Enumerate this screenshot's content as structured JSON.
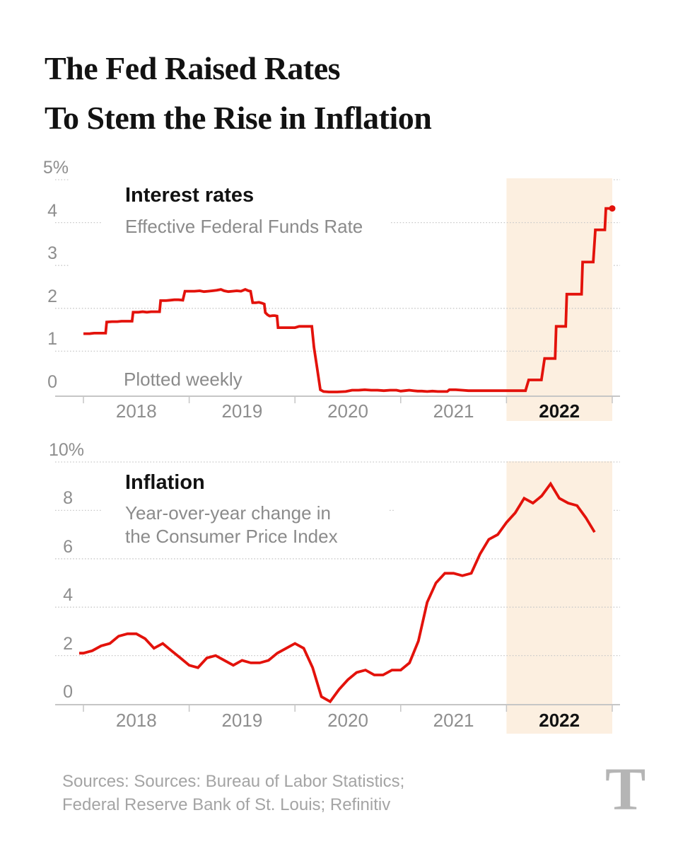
{
  "headline": {
    "line1": "The Fed Raised Rates",
    "line2": "To Stem the Rise in Inflation"
  },
  "footer": {
    "sources_line1": "Sources: Sources: Bureau of Labor Statistics;",
    "sources_line2": "Federal Reserve Bank of St. Louis; Refinitiv",
    "logo_glyph": "T"
  },
  "colors": {
    "accent_red": "#e3120b",
    "highlight_beige": "#fcefe0",
    "gridline": "#c9c9c9",
    "axis": "#c6c6c6",
    "axis_label": "#8e8e8e",
    "subtitle_gray": "#8b8b8b",
    "headline_black": "#121212",
    "sources_gray": "#a4a4a4",
    "logo_gray": "#b5b5b5"
  },
  "chart_data": [
    {
      "type": "line",
      "title": "Interest rates",
      "subtitle": "Effective Federal Funds Rate",
      "annotation": "Plotted weekly",
      "xlim": [
        2018,
        2023
      ],
      "ylim": [
        0,
        5
      ],
      "x_tick_labels": [
        "2018",
        "2019",
        "2020",
        "2021",
        "2022"
      ],
      "bold_x_tick_label": "2022",
      "highlight_region": [
        2022,
        2023
      ],
      "grid": "dotted",
      "legend": "none",
      "end_dot": true,
      "y_ticks": [
        {
          "value": 5,
          "label": "5%",
          "line": "stub"
        },
        {
          "value": 4,
          "label": "4",
          "line": "split"
        },
        {
          "value": 3,
          "label": "3",
          "line": "stub"
        },
        {
          "value": 2,
          "label": "2",
          "line": "full"
        },
        {
          "value": 1,
          "label": "1",
          "line": "full"
        },
        {
          "value": 0,
          "label": "0",
          "line": "axis"
        }
      ],
      "points": [
        [
          2018.0,
          1.41
        ],
        [
          2018.06,
          1.41
        ],
        [
          2018.1,
          1.42
        ],
        [
          2018.14,
          1.42
        ],
        [
          2018.18,
          1.42
        ],
        [
          2018.21,
          1.42
        ],
        [
          2018.22,
          1.68
        ],
        [
          2018.27,
          1.69
        ],
        [
          2018.32,
          1.69
        ],
        [
          2018.36,
          1.7
        ],
        [
          2018.4,
          1.7
        ],
        [
          2018.44,
          1.7
        ],
        [
          2018.46,
          1.7
        ],
        [
          2018.47,
          1.91
        ],
        [
          2018.52,
          1.91
        ],
        [
          2018.56,
          1.92
        ],
        [
          2018.6,
          1.91
        ],
        [
          2018.64,
          1.92
        ],
        [
          2018.68,
          1.92
        ],
        [
          2018.72,
          1.92
        ],
        [
          2018.73,
          2.18
        ],
        [
          2018.78,
          2.18
        ],
        [
          2018.82,
          2.19
        ],
        [
          2018.86,
          2.2
        ],
        [
          2018.9,
          2.2
        ],
        [
          2018.94,
          2.19
        ],
        [
          2018.96,
          2.4
        ],
        [
          2019.0,
          2.4
        ],
        [
          2019.05,
          2.4
        ],
        [
          2019.1,
          2.41
        ],
        [
          2019.14,
          2.39
        ],
        [
          2019.18,
          2.4
        ],
        [
          2019.22,
          2.41
        ],
        [
          2019.26,
          2.42
        ],
        [
          2019.3,
          2.44
        ],
        [
          2019.33,
          2.41
        ],
        [
          2019.37,
          2.39
        ],
        [
          2019.41,
          2.4
        ],
        [
          2019.45,
          2.41
        ],
        [
          2019.49,
          2.4
        ],
        [
          2019.53,
          2.44
        ],
        [
          2019.56,
          2.41
        ],
        [
          2019.58,
          2.4
        ],
        [
          2019.6,
          2.13
        ],
        [
          2019.63,
          2.13
        ],
        [
          2019.66,
          2.14
        ],
        [
          2019.69,
          2.12
        ],
        [
          2019.71,
          2.1
        ],
        [
          2019.72,
          1.9
        ],
        [
          2019.74,
          1.85
        ],
        [
          2019.76,
          1.82
        ],
        [
          2019.79,
          1.83
        ],
        [
          2019.81,
          1.83
        ],
        [
          2019.83,
          1.82
        ],
        [
          2019.84,
          1.55
        ],
        [
          2019.88,
          1.55
        ],
        [
          2019.92,
          1.55
        ],
        [
          2019.96,
          1.55
        ],
        [
          2020.0,
          1.55
        ],
        [
          2020.04,
          1.58
        ],
        [
          2020.08,
          1.58
        ],
        [
          2020.12,
          1.58
        ],
        [
          2020.16,
          1.58
        ],
        [
          2020.18,
          1.09
        ],
        [
          2020.21,
          0.6
        ],
        [
          2020.24,
          0.1
        ],
        [
          2020.27,
          0.06
        ],
        [
          2020.32,
          0.05
        ],
        [
          2020.4,
          0.05
        ],
        [
          2020.48,
          0.06
        ],
        [
          2020.54,
          0.09
        ],
        [
          2020.6,
          0.09
        ],
        [
          2020.66,
          0.1
        ],
        [
          2020.72,
          0.09
        ],
        [
          2020.78,
          0.09
        ],
        [
          2020.84,
          0.08
        ],
        [
          2020.9,
          0.09
        ],
        [
          2020.96,
          0.09
        ],
        [
          2021.0,
          0.07
        ],
        [
          2021.04,
          0.08
        ],
        [
          2021.08,
          0.09
        ],
        [
          2021.12,
          0.08
        ],
        [
          2021.16,
          0.07
        ],
        [
          2021.2,
          0.07
        ],
        [
          2021.25,
          0.06
        ],
        [
          2021.3,
          0.07
        ],
        [
          2021.35,
          0.06
        ],
        [
          2021.4,
          0.06
        ],
        [
          2021.44,
          0.06
        ],
        [
          2021.46,
          0.1
        ],
        [
          2021.52,
          0.1
        ],
        [
          2021.58,
          0.09
        ],
        [
          2021.64,
          0.08
        ],
        [
          2021.7,
          0.08
        ],
        [
          2021.76,
          0.08
        ],
        [
          2021.82,
          0.08
        ],
        [
          2021.88,
          0.08
        ],
        [
          2021.94,
          0.08
        ],
        [
          2022.0,
          0.08
        ],
        [
          2022.06,
          0.08
        ],
        [
          2022.12,
          0.08
        ],
        [
          2022.18,
          0.08
        ],
        [
          2022.21,
          0.33
        ],
        [
          2022.27,
          0.33
        ],
        [
          2022.33,
          0.33
        ],
        [
          2022.36,
          0.83
        ],
        [
          2022.4,
          0.83
        ],
        [
          2022.44,
          0.83
        ],
        [
          2022.46,
          0.83
        ],
        [
          2022.47,
          1.58
        ],
        [
          2022.52,
          1.58
        ],
        [
          2022.56,
          1.58
        ],
        [
          2022.57,
          2.33
        ],
        [
          2022.62,
          2.33
        ],
        [
          2022.67,
          2.33
        ],
        [
          2022.71,
          2.33
        ],
        [
          2022.72,
          3.08
        ],
        [
          2022.77,
          3.08
        ],
        [
          2022.82,
          3.08
        ],
        [
          2022.84,
          3.83
        ],
        [
          2022.88,
          3.83
        ],
        [
          2022.93,
          3.83
        ],
        [
          2022.94,
          4.33
        ],
        [
          2023.0,
          4.33
        ]
      ]
    },
    {
      "type": "line",
      "title": "Inflation",
      "subtitle_line1": "Year-over-year change in",
      "subtitle_line2": "the Consumer Price Index",
      "xlim": [
        2018,
        2023
      ],
      "ylim": [
        0,
        10
      ],
      "x_tick_labels": [
        "2018",
        "2019",
        "2020",
        "2021",
        "2022"
      ],
      "bold_x_tick_label": "2022",
      "highlight_region": [
        2022,
        2023
      ],
      "grid": "dotted",
      "legend": "none",
      "end_dot": false,
      "y_ticks": [
        {
          "value": 10,
          "label": "10%",
          "line": "full"
        },
        {
          "value": 8,
          "label": "8",
          "line": "broken"
        },
        {
          "value": 6,
          "label": "6",
          "line": "full"
        },
        {
          "value": 4,
          "label": "4",
          "line": "full"
        },
        {
          "value": 2,
          "label": "2",
          "line": "full"
        },
        {
          "value": 0,
          "label": "0",
          "line": "axis"
        }
      ],
      "points": [
        [
          2017.96,
          2.1
        ],
        [
          2018.0,
          2.1
        ],
        [
          2018.083,
          2.2
        ],
        [
          2018.167,
          2.4
        ],
        [
          2018.25,
          2.5
        ],
        [
          2018.333,
          2.8
        ],
        [
          2018.417,
          2.9
        ],
        [
          2018.5,
          2.9
        ],
        [
          2018.583,
          2.7
        ],
        [
          2018.667,
          2.3
        ],
        [
          2018.75,
          2.5
        ],
        [
          2018.833,
          2.2
        ],
        [
          2018.917,
          1.9
        ],
        [
          2019.0,
          1.6
        ],
        [
          2019.083,
          1.5
        ],
        [
          2019.167,
          1.9
        ],
        [
          2019.25,
          2.0
        ],
        [
          2019.333,
          1.8
        ],
        [
          2019.417,
          1.6
        ],
        [
          2019.5,
          1.8
        ],
        [
          2019.583,
          1.7
        ],
        [
          2019.667,
          1.7
        ],
        [
          2019.75,
          1.8
        ],
        [
          2019.833,
          2.1
        ],
        [
          2019.917,
          2.3
        ],
        [
          2020.0,
          2.5
        ],
        [
          2020.083,
          2.3
        ],
        [
          2020.167,
          1.5
        ],
        [
          2020.25,
          0.3
        ],
        [
          2020.333,
          0.1
        ],
        [
          2020.417,
          0.6
        ],
        [
          2020.5,
          1.0
        ],
        [
          2020.583,
          1.3
        ],
        [
          2020.667,
          1.4
        ],
        [
          2020.75,
          1.2
        ],
        [
          2020.833,
          1.2
        ],
        [
          2020.917,
          1.4
        ],
        [
          2021.0,
          1.4
        ],
        [
          2021.083,
          1.7
        ],
        [
          2021.167,
          2.6
        ],
        [
          2021.25,
          4.2
        ],
        [
          2021.333,
          5.0
        ],
        [
          2021.417,
          5.4
        ],
        [
          2021.5,
          5.4
        ],
        [
          2021.583,
          5.3
        ],
        [
          2021.667,
          5.4
        ],
        [
          2021.75,
          6.2
        ],
        [
          2021.833,
          6.8
        ],
        [
          2021.917,
          7.0
        ],
        [
          2022.0,
          7.5
        ],
        [
          2022.083,
          7.9
        ],
        [
          2022.167,
          8.5
        ],
        [
          2022.25,
          8.3
        ],
        [
          2022.333,
          8.6
        ],
        [
          2022.417,
          9.1
        ],
        [
          2022.5,
          8.5
        ],
        [
          2022.583,
          8.3
        ],
        [
          2022.667,
          8.2
        ],
        [
          2022.75,
          7.7
        ],
        [
          2022.833,
          7.1
        ]
      ]
    }
  ]
}
